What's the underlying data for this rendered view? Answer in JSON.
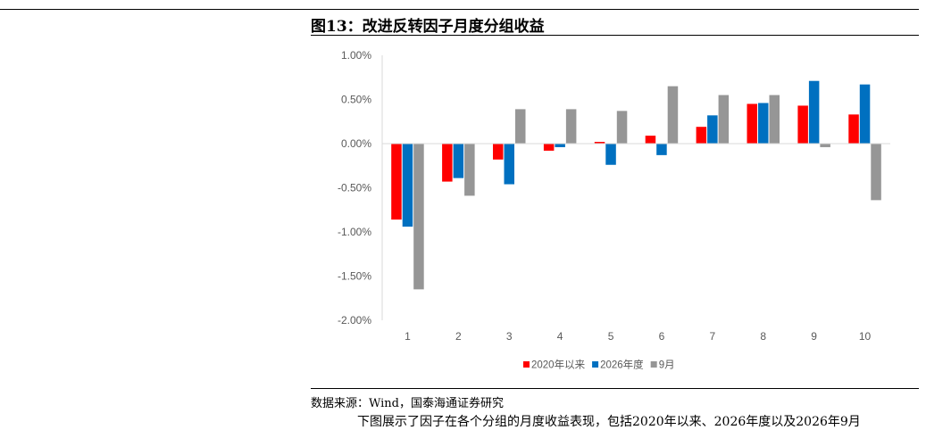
{
  "figure": {
    "title": "图13：改进反转因子月度分组收益",
    "source": "数据来源：Wind，国泰海通证券研究",
    "body_text": "下图展示了因子在各个分组的月度收益表现，包括2020年以来、2026年度以及2026年9月"
  },
  "chart_data": {
    "type": "bar",
    "title": "",
    "xlabel": "",
    "ylabel": "",
    "categories": [
      "1",
      "2",
      "3",
      "4",
      "5",
      "6",
      "7",
      "8",
      "9",
      "10"
    ],
    "series": [
      {
        "name": "2020年以来",
        "color": "#ff0000",
        "values": [
          -0.86,
          -0.43,
          -0.18,
          -0.08,
          0.02,
          0.09,
          0.19,
          0.45,
          0.43,
          0.33
        ]
      },
      {
        "name": "2026年度",
        "color": "#0070c0",
        "values": [
          -0.94,
          -0.39,
          -0.46,
          -0.04,
          -0.24,
          -0.13,
          0.32,
          0.46,
          0.71,
          0.67
        ]
      },
      {
        "name": "9月",
        "color": "#969696",
        "values": [
          -1.65,
          -0.59,
          0.39,
          0.39,
          0.37,
          0.65,
          0.55,
          0.55,
          -0.04,
          -0.64
        ]
      }
    ],
    "ylim": [
      -2.0,
      1.0
    ],
    "yticks": [
      1.0,
      0.5,
      0.0,
      -0.5,
      -1.0,
      -1.5,
      -2.0
    ],
    "ytick_labels": [
      "1.00%",
      "0.50%",
      "0.00%",
      "-0.50%",
      "-1.00%",
      "-1.50%",
      "-2.00%"
    ],
    "y_unit": "%",
    "grid": false,
    "legend": "bottom"
  }
}
